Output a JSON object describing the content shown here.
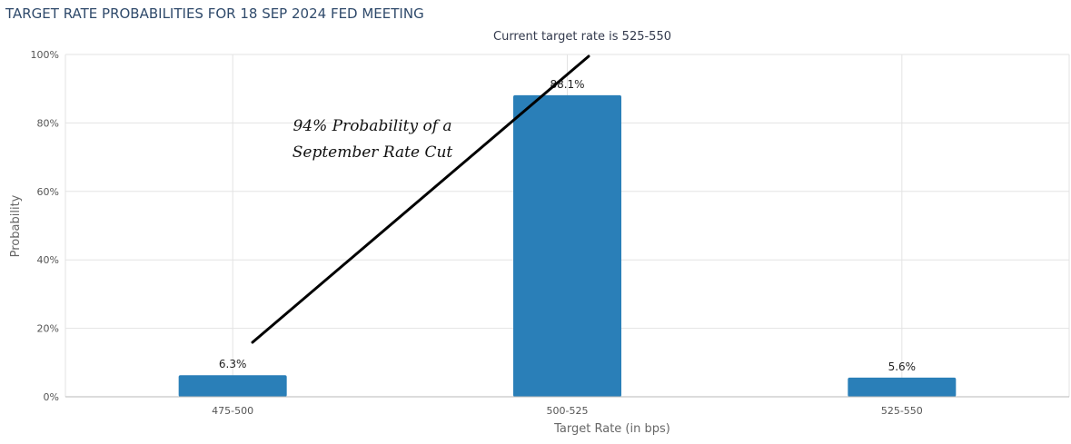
{
  "chart_data": {
    "type": "bar",
    "title": "TARGET RATE PROBABILITIES FOR 18 SEP 2024 FED MEETING",
    "subtitle": "Current target rate is 525-550",
    "categories": [
      "475-500",
      "500-525",
      "525-550"
    ],
    "values": [
      6.3,
      88.1,
      5.6
    ],
    "value_labels": [
      "6.3%",
      "88.1%",
      "5.6%"
    ],
    "xlabel": "Target Rate (in bps)",
    "ylabel": "Probability",
    "ylim": [
      0,
      100
    ],
    "yticks": [
      0,
      20,
      40,
      60,
      80,
      100
    ],
    "ytick_labels": [
      "0%",
      "20%",
      "40%",
      "60%",
      "80%",
      "100%"
    ],
    "grid": true,
    "bar_color": "#2a7fb8",
    "annotation": {
      "lines": [
        "94% Probability of a",
        "September Rate Cut"
      ],
      "arrow_color": "#000000"
    }
  }
}
